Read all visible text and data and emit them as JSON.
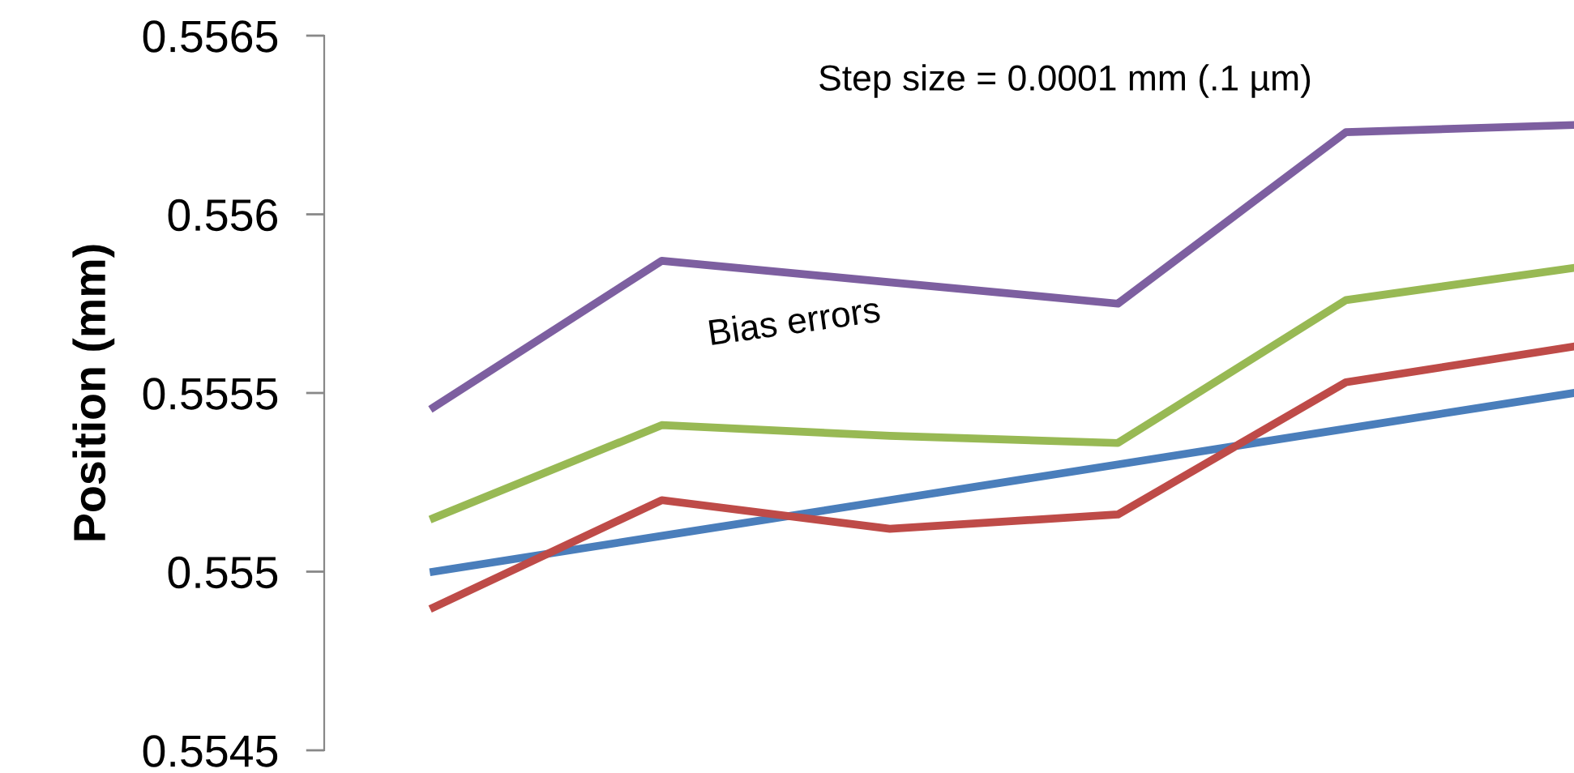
{
  "chart_data": {
    "type": "line",
    "ylabel": "Position (mm)",
    "categories": [
      null,
      null,
      null,
      null,
      null,
      null
    ],
    "series": [
      {
        "color": "#4a7ebb",
        "values": [
          0.555,
          0.5551,
          0.5552,
          0.5553,
          0.5554,
          0.5555
        ]
      },
      {
        "color": "#be4b48",
        "values": [
          0.5549,
          0.5552,
          0.55512,
          0.55516,
          0.55553,
          0.55563
        ]
      },
      {
        "color": "#98b954",
        "values": [
          0.55515,
          0.55541,
          0.55538,
          0.55536,
          0.55576,
          0.55585
        ]
      },
      {
        "color": "#7d5fa0",
        "values": [
          0.55546,
          0.55587,
          0.55581,
          0.55575,
          0.55623,
          0.55625
        ]
      }
    ],
    "ylim": [
      0.5545,
      0.5565
    ],
    "yticks": [
      0.5545,
      0.555,
      0.5555,
      0.556,
      0.5565
    ],
    "annotations": [
      "Step size = 0.0001 mm (.1 µm)",
      "Bias errors"
    ],
    "grid": false,
    "legend": false,
    "marker": "none",
    "line_style": "solid",
    "tick_labels": "y"
  }
}
